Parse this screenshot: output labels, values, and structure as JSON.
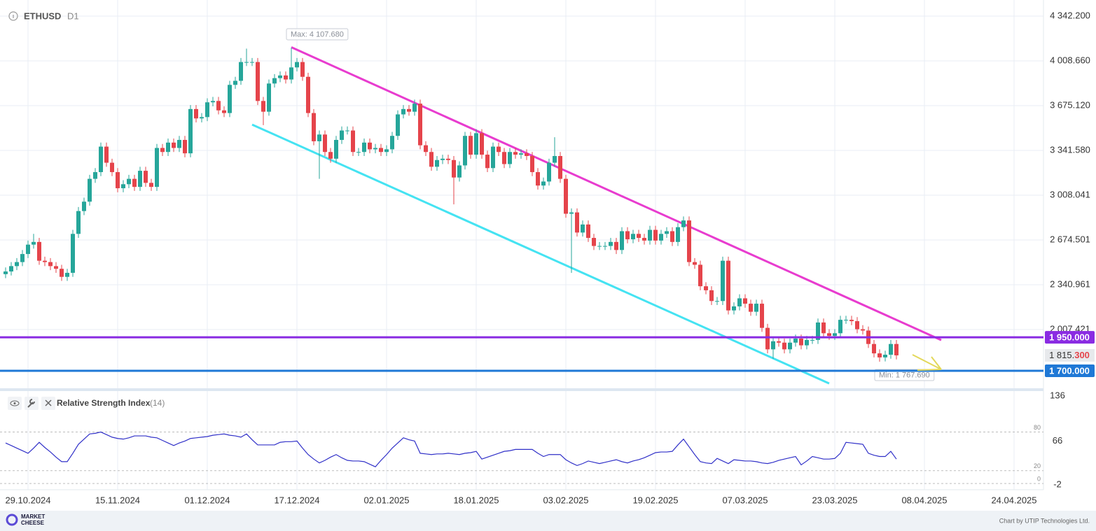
{
  "header": {
    "symbol": "ETHUSD",
    "timeframe": "D1"
  },
  "footer": {
    "logo": [
      "MARKET",
      "CHEESE"
    ],
    "credit": "Chart by UTIP Technologies Ltd."
  },
  "chart_data": [
    {
      "type": "candlestick",
      "up_color": "#26a69a",
      "down_color": "#e5444b",
      "grid": true,
      "xlim": [
        -1,
        185.25
      ],
      "ylim": [
        1570,
        4462
      ],
      "yticks": [
        {
          "value": 4342.2,
          "label": "4 342.200"
        },
        {
          "value": 4008.66,
          "label": "4 008.660"
        },
        {
          "value": 3675.12,
          "label": "3 675.120"
        },
        {
          "value": 3341.58,
          "label": "3 341.580"
        },
        {
          "value": 3008.041,
          "label": "3 008.041"
        },
        {
          "value": 2674.501,
          "label": "2 674.501"
        },
        {
          "value": 2340.961,
          "label": "2 340.961"
        },
        {
          "value": 2007.421,
          "label": "2 007.421"
        }
      ],
      "xticks": [
        {
          "value": 4,
          "label": "29.10.2024"
        },
        {
          "value": 20,
          "label": "15.11.2024"
        },
        {
          "value": 36,
          "label": "01.12.2024"
        },
        {
          "value": 52,
          "label": "17.12.2024"
        },
        {
          "value": 68,
          "label": "02.01.2025"
        },
        {
          "value": 84,
          "label": "18.01.2025"
        },
        {
          "value": 100,
          "label": "03.02.2025"
        },
        {
          "value": 116,
          "label": "19.02.2025"
        },
        {
          "value": 132,
          "label": "07.03.2025"
        },
        {
          "value": 148,
          "label": "23.03.2025"
        },
        {
          "value": 164,
          "label": "08.04.2025"
        },
        {
          "value": 180,
          "label": "24.04.2025"
        }
      ],
      "open": [
        2420,
        2440,
        2480,
        2510,
        2570,
        2640,
        2660,
        2520,
        2510,
        2480,
        2460,
        2400,
        2430,
        2720,
        2890,
        2960,
        3130,
        3180,
        3370,
        3250,
        3180,
        3060,
        3090,
        3130,
        3070,
        3190,
        3100,
        3070,
        3360,
        3330,
        3400,
        3360,
        3420,
        3320,
        3650,
        3580,
        3590,
        3700,
        3710,
        3640,
        3620,
        3830,
        3860,
        4000,
        4000,
        4000,
        3710,
        3630,
        3840,
        3880,
        3900,
        3870,
        3960,
        4000,
        3890,
        3620,
        3410,
        3460,
        3330,
        3280,
        3420,
        3490,
        3490,
        3330,
        3330,
        3400,
        3350,
        3360,
        3330,
        3350,
        3450,
        3610,
        3650,
        3630,
        3690,
        3380,
        3330,
        3220,
        3270,
        3280,
        3270,
        3140,
        3230,
        3450,
        3310,
        3470,
        3310,
        3210,
        3370,
        3330,
        3240,
        3330,
        3310,
        3320,
        3300,
        3180,
        3080,
        3110,
        3250,
        3300,
        3130,
        2870,
        2880,
        2730,
        2790,
        2690,
        2630,
        2630,
        2630,
        2660,
        2600,
        2740,
        2680,
        2720,
        2690,
        2670,
        2750,
        2670,
        2720,
        2740,
        2660,
        2770,
        2820,
        2510,
        2490,
        2330,
        2300,
        2220,
        2220,
        2520,
        2150,
        2180,
        2240,
        2200,
        2140,
        2200,
        2020,
        1860,
        1920,
        1910,
        1860,
        1910,
        1940,
        1890,
        1930,
        1930,
        2060,
        1980,
        1960,
        1980,
        2080,
        2080,
        2070,
        2010,
        2000,
        1900,
        1830,
        1800,
        1820,
        1900
      ],
      "high": [
        2470,
        2510,
        2540,
        2600,
        2670,
        2720,
        2690,
        2550,
        2540,
        2510,
        2490,
        2460,
        2750,
        2920,
        2990,
        3160,
        3210,
        3400,
        3400,
        3280,
        3210,
        3120,
        3160,
        3160,
        3220,
        3220,
        3130,
        3390,
        3390,
        3430,
        3430,
        3450,
        3450,
        3680,
        3680,
        3620,
        3730,
        3740,
        3740,
        3670,
        3860,
        3890,
        4030,
        4100,
        4030,
        4030,
        3740,
        3870,
        3910,
        3930,
        3930,
        4107.68,
        4030,
        4030,
        3920,
        3650,
        3490,
        3490,
        3360,
        3450,
        3520,
        3520,
        3520,
        3360,
        3430,
        3430,
        3390,
        3390,
        3380,
        3480,
        3640,
        3680,
        3680,
        3720,
        3720,
        3410,
        3360,
        3300,
        3310,
        3310,
        3300,
        3260,
        3480,
        3480,
        3500,
        3500,
        3340,
        3400,
        3400,
        3360,
        3360,
        3360,
        3350,
        3350,
        3330,
        3210,
        3140,
        3280,
        3440,
        3330,
        3160,
        2910,
        2910,
        2820,
        2820,
        2720,
        2660,
        2660,
        2690,
        2690,
        2770,
        2770,
        2750,
        2750,
        2720,
        2780,
        2780,
        2750,
        2770,
        2770,
        2800,
        2850,
        2850,
        2540,
        2520,
        2360,
        2330,
        2250,
        2550,
        2550,
        2210,
        2270,
        2270,
        2230,
        2230,
        2230,
        2050,
        1950,
        1950,
        1940,
        1940,
        1970,
        1970,
        1960,
        1960,
        2090,
        2090,
        2010,
        2010,
        2110,
        2110,
        2110,
        2100,
        2040,
        2030,
        1930,
        1860,
        1850,
        1930,
        1930
      ],
      "low": [
        2390,
        2410,
        2450,
        2480,
        2540,
        2610,
        2490,
        2480,
        2450,
        2430,
        2370,
        2370,
        2400,
        2690,
        2860,
        2930,
        3100,
        3150,
        3220,
        3150,
        3030,
        3030,
        3060,
        3040,
        3040,
        3070,
        3040,
        3040,
        3300,
        3300,
        3330,
        3330,
        3290,
        3290,
        3550,
        3550,
        3560,
        3670,
        3610,
        3590,
        3590,
        3800,
        3830,
        3970,
        3970,
        3680,
        3530,
        3600,
        3810,
        3850,
        3840,
        3840,
        3930,
        3860,
        3590,
        3380,
        3130,
        3300,
        3250,
        3250,
        3390,
        3460,
        3300,
        3300,
        3300,
        3320,
        3320,
        3300,
        3300,
        3320,
        3420,
        3580,
        3600,
        3600,
        3350,
        3300,
        3190,
        3190,
        3240,
        3240,
        2940,
        3110,
        3200,
        3280,
        3280,
        3280,
        3180,
        3180,
        3300,
        3210,
        3210,
        3280,
        3280,
        3270,
        3150,
        3050,
        3050,
        3080,
        3220,
        3100,
        2840,
        2430,
        2700,
        2700,
        2660,
        2600,
        2600,
        2600,
        2600,
        2570,
        2570,
        2650,
        2650,
        2660,
        2640,
        2640,
        2640,
        2640,
        2690,
        2630,
        2630,
        2740,
        2480,
        2460,
        2300,
        2270,
        2190,
        2190,
        2190,
        2120,
        2120,
        2150,
        2170,
        2110,
        2110,
        1990,
        1830,
        1790,
        1880,
        1830,
        1830,
        1880,
        1860,
        1860,
        1900,
        1900,
        1950,
        1930,
        1930,
        1950,
        2050,
        2040,
        1980,
        1970,
        1870,
        1800,
        1767.69,
        1770,
        1790,
        1785
      ],
      "close": [
        2440,
        2480,
        2510,
        2570,
        2640,
        2660,
        2520,
        2510,
        2480,
        2460,
        2400,
        2430,
        2720,
        2890,
        2960,
        3130,
        3180,
        3370,
        3250,
        3180,
        3060,
        3090,
        3130,
        3070,
        3190,
        3100,
        3070,
        3360,
        3330,
        3400,
        3360,
        3420,
        3320,
        3650,
        3580,
        3590,
        3700,
        3710,
        3640,
        3620,
        3830,
        3860,
        4000,
        4000,
        4000,
        3710,
        3630,
        3840,
        3880,
        3900,
        3870,
        3960,
        4000,
        3890,
        3620,
        3410,
        3460,
        3330,
        3280,
        3420,
        3490,
        3490,
        3330,
        3330,
        3400,
        3350,
        3360,
        3330,
        3350,
        3450,
        3610,
        3650,
        3630,
        3690,
        3380,
        3330,
        3220,
        3270,
        3280,
        3270,
        3140,
        3230,
        3450,
        3310,
        3470,
        3310,
        3210,
        3370,
        3330,
        3240,
        3330,
        3310,
        3320,
        3300,
        3180,
        3080,
        3110,
        3250,
        3300,
        3130,
        2870,
        2880,
        2730,
        2790,
        2690,
        2630,
        2630,
        2630,
        2660,
        2600,
        2740,
        2680,
        2720,
        2690,
        2670,
        2750,
        2670,
        2720,
        2740,
        2660,
        2770,
        2820,
        2510,
        2490,
        2330,
        2300,
        2220,
        2220,
        2520,
        2150,
        2180,
        2240,
        2200,
        2140,
        2200,
        2020,
        1860,
        1920,
        1910,
        1860,
        1910,
        1940,
        1890,
        1930,
        1930,
        2060,
        1980,
        1960,
        1980,
        2080,
        2080,
        2070,
        2010,
        2000,
        1900,
        1830,
        1800,
        1820,
        1900,
        1815.3
      ],
      "annotations": [
        {
          "text": "Max: 4 107.680",
          "x": 51,
          "value": 4107.68,
          "position": "above"
        },
        {
          "text": "Min: 1 767.690",
          "x": 156,
          "value": 1767.69,
          "position": "below"
        }
      ],
      "trendlines": [
        {
          "color": "#e83ccf",
          "points": [
            [
              51,
              4110
            ],
            [
              167,
              1929
            ]
          ]
        },
        {
          "color": "#45e3f2",
          "points": [
            [
              44,
              3534
            ],
            [
              147,
              1606
            ]
          ]
        }
      ],
      "price_lines": [
        {
          "value": 1950,
          "label": "1 950.000",
          "color": "#8a2be2"
        },
        {
          "value": 1700,
          "label": "1 700.000",
          "color": "#1f78d6"
        }
      ],
      "current_price": {
        "value": 1815.3,
        "label": "1 815.300",
        "color": "#e5444b"
      }
    },
    {
      "type": "line",
      "title": "Relative Strength Index",
      "subtitle": "(14)",
      "color": "#3030c8",
      "ylim": [
        -9.6,
        142.5
      ],
      "yticks": [
        136,
        66,
        -2
      ],
      "levels": [
        80,
        20,
        0
      ],
      "values": [
        63,
        59,
        55,
        51,
        47,
        55,
        64,
        56,
        49,
        41,
        34,
        34,
        47,
        61,
        69,
        77,
        78,
        80,
        76,
        72,
        70,
        69,
        71,
        74,
        74,
        74,
        72,
        71,
        67,
        63,
        59,
        63,
        66,
        70,
        71,
        72,
        73,
        75,
        76,
        77,
        75,
        74,
        72,
        77,
        68,
        60,
        60,
        60,
        60,
        64,
        65,
        65,
        66,
        55,
        45,
        38,
        32,
        36,
        41,
        45,
        40,
        36,
        35,
        35,
        34,
        30,
        26,
        36,
        45,
        55,
        63,
        71,
        68,
        66,
        47,
        46,
        45,
        46,
        46,
        47,
        46,
        45,
        47,
        48,
        50,
        38,
        41,
        44,
        47,
        50,
        51,
        53,
        53,
        53,
        53,
        47,
        42,
        45,
        45,
        45,
        37,
        32,
        28,
        31,
        35,
        33,
        31,
        33,
        35,
        37,
        34,
        32,
        35,
        37,
        40,
        44,
        48,
        49,
        49,
        50,
        60,
        69,
        57,
        45,
        34,
        32,
        31,
        39,
        35,
        31,
        37,
        36,
        35,
        35,
        34,
        32,
        31,
        33,
        36,
        38,
        40,
        42,
        29,
        35,
        42,
        40,
        38,
        38,
        39,
        47,
        64,
        63,
        62,
        61,
        47,
        44,
        42,
        42,
        50,
        38
      ]
    }
  ]
}
